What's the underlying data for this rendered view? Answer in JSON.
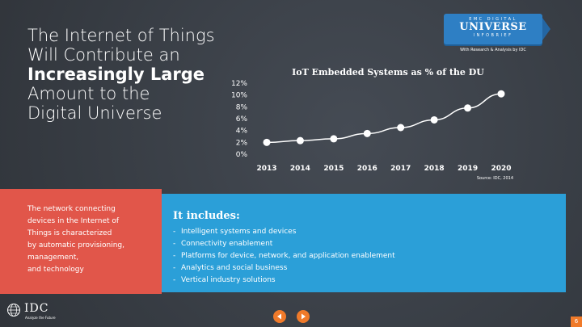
{
  "title": {
    "line1": "The Internet of Things",
    "line2": "Will Contribute an",
    "line3": "Increasingly Large",
    "line4": "Amount to the",
    "line5": "Digital Universe"
  },
  "badge": {
    "top": "EMC DIGITAL",
    "mid": "UNIVERSE",
    "bottom": "INFOBRIEF",
    "sub": "With Research & Analysis by IDC"
  },
  "chart_data": {
    "type": "line",
    "title": "IoT Embedded Systems as % of the DU",
    "categories": [
      "2013",
      "2014",
      "2015",
      "2016",
      "2017",
      "2018",
      "2019",
      "2020"
    ],
    "values": [
      2,
      2.3,
      2.6,
      3.5,
      4.5,
      5.8,
      7.8,
      10.2
    ],
    "y_ticks": [
      "0%",
      "2%",
      "4%",
      "6%",
      "8%",
      "10%",
      "12%"
    ],
    "ylim": [
      0,
      12
    ],
    "xlabel": "",
    "ylabel": "",
    "grid": false,
    "source": "Source: IDC, 2014",
    "line_color": "#ffffff"
  },
  "left_box": {
    "lines": [
      "The network connecting",
      "devices in the Internet of",
      "Things is characterized",
      "by automatic provisioning,",
      "management,",
      "and technology"
    ],
    "color": "#e1564a"
  },
  "right_box": {
    "heading": "It includes:",
    "items": [
      "Intelligent systems and devices",
      "Connectivity enablement",
      "Platforms for device, network, and application enablement",
      "Analytics and social business",
      "Vertical industry solutions"
    ],
    "color": "#2b9fd8"
  },
  "footer": {
    "logo": "IDC",
    "tagline": "Analyze the Future",
    "page": "6"
  }
}
